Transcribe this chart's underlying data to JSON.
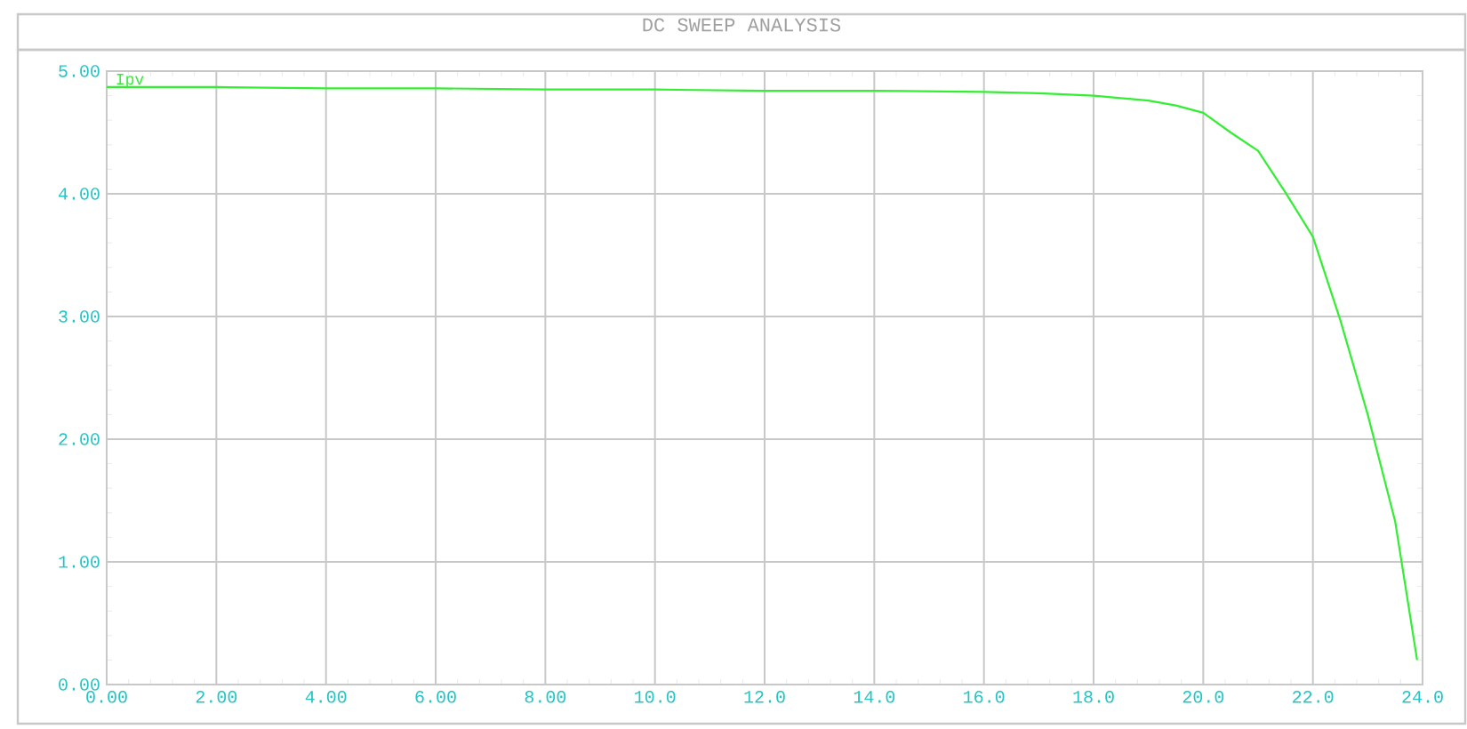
{
  "chart_data": {
    "type": "line",
    "title": "DC SWEEP ANALYSIS",
    "x": [
      0,
      2,
      4,
      6,
      8,
      10,
      12,
      14,
      16,
      17,
      18,
      19,
      19.5,
      20,
      20.5,
      21,
      21.5,
      22,
      22.5,
      23,
      23.5,
      23.9
    ],
    "series": [
      {
        "name": "Ipv",
        "color": "#33ee33",
        "values": [
          4.87,
          4.87,
          4.86,
          4.86,
          4.85,
          4.85,
          4.84,
          4.84,
          4.83,
          4.82,
          4.8,
          4.76,
          4.72,
          4.66,
          4.5,
          4.35,
          4.01,
          3.65,
          2.97,
          2.2,
          1.33,
          0.2
        ]
      }
    ],
    "xlim": [
      0,
      24
    ],
    "ylim": [
      0,
      5
    ],
    "xticks": [
      {
        "value": 0,
        "label": "0.00"
      },
      {
        "value": 2,
        "label": "2.00"
      },
      {
        "value": 4,
        "label": "4.00"
      },
      {
        "value": 6,
        "label": "6.00"
      },
      {
        "value": 8,
        "label": "8.00"
      },
      {
        "value": 10,
        "label": "10.0"
      },
      {
        "value": 12,
        "label": "12.0"
      },
      {
        "value": 14,
        "label": "14.0"
      },
      {
        "value": 16,
        "label": "16.0"
      },
      {
        "value": 18,
        "label": "18.0"
      },
      {
        "value": 20,
        "label": "20.0"
      },
      {
        "value": 22,
        "label": "22.0"
      },
      {
        "value": 24,
        "label": "24.0"
      }
    ],
    "yticks": [
      {
        "value": 0,
        "label": "0.00"
      },
      {
        "value": 1,
        "label": "1.00"
      },
      {
        "value": 2,
        "label": "2.00"
      },
      {
        "value": 3,
        "label": "3.00"
      },
      {
        "value": 4,
        "label": "4.00"
      },
      {
        "value": 5,
        "label": "5.00"
      }
    ],
    "grid": true,
    "marker": "none",
    "line_style": "solid"
  }
}
